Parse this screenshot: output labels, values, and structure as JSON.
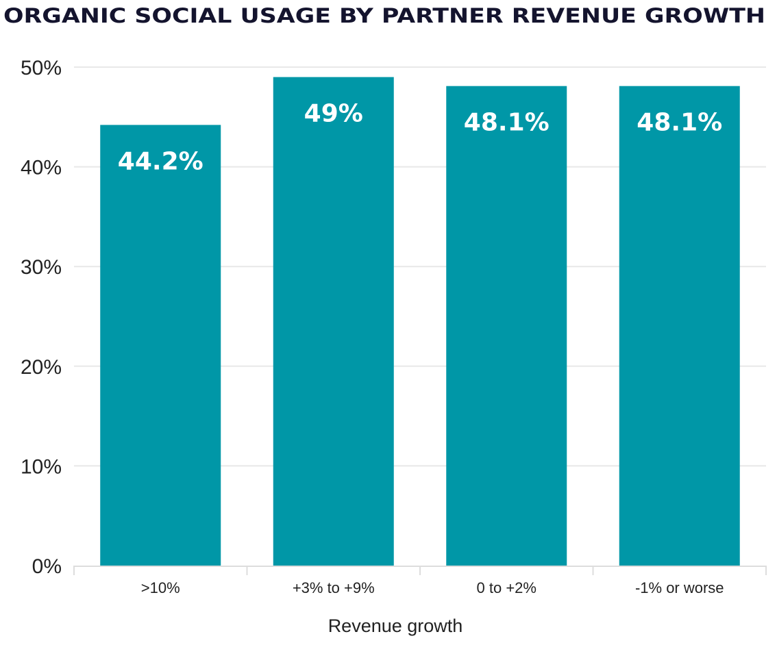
{
  "chart_data": {
    "type": "bar",
    "title": "ORGANIC SOCIAL USAGE BY PARTNER REVENUE GROWTH",
    "xlabel": "Revenue growth",
    "ylabel": "",
    "categories": [
      ">10%",
      "+3% to +9%",
      "0 to +2%",
      "-1% or worse"
    ],
    "values": [
      44.2,
      49,
      48.1,
      48.1
    ],
    "data_labels": [
      "44.2%",
      "49%",
      "48.1%",
      "48.1%"
    ],
    "ylim": [
      0,
      50
    ],
    "yticks": [
      0,
      10,
      20,
      30,
      40,
      50
    ],
    "ytick_labels": [
      "0%",
      "10%",
      "20%",
      "30%",
      "40%",
      "50%"
    ],
    "grid": true,
    "legend": "none",
    "colors": {
      "bar": "#0097a7",
      "grid": "#e8e8e8",
      "title": "#14142e"
    }
  }
}
